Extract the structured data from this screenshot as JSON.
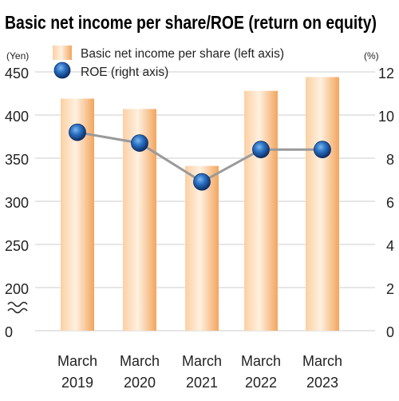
{
  "chart_data": {
    "title": "Basic net income per share/ROE (return on equity)",
    "type": "bar+line",
    "categories": [
      [
        "March",
        "2019"
      ],
      [
        "March",
        "2020"
      ],
      [
        "March",
        "2021"
      ],
      [
        "March",
        "2022"
      ],
      [
        "March",
        "2023"
      ]
    ],
    "left_axis": {
      "unit": "(Yen)",
      "ticks": [
        "450",
        "400",
        "350",
        "300",
        "250",
        "200",
        "0"
      ],
      "broken": true,
      "range": [
        200,
        450
      ]
    },
    "right_axis": {
      "unit": "(%)",
      "ticks": [
        "12",
        "10",
        "8",
        "6",
        "4",
        "2",
        "0"
      ],
      "range": [
        0,
        12
      ]
    },
    "series": [
      {
        "name": "Basic net income per share (left axis)",
        "type": "bar",
        "axis": "left",
        "values": [
          419,
          407,
          341,
          428,
          444
        ]
      },
      {
        "name": "ROE (right axis)",
        "type": "line",
        "axis": "right",
        "values": [
          9.2,
          8.7,
          6.9,
          8.4,
          8.4
        ]
      }
    ],
    "grid": true,
    "legend_position": "top-left",
    "colors": {
      "title": "#1b3f8b",
      "bar_light": "#fde3c6",
      "bar_dark": "#f3a55d",
      "line": "#9a9a9a",
      "marker_center": "#2a72c4",
      "marker_edge": "#0d2d66",
      "grid": "#cccccc"
    }
  }
}
